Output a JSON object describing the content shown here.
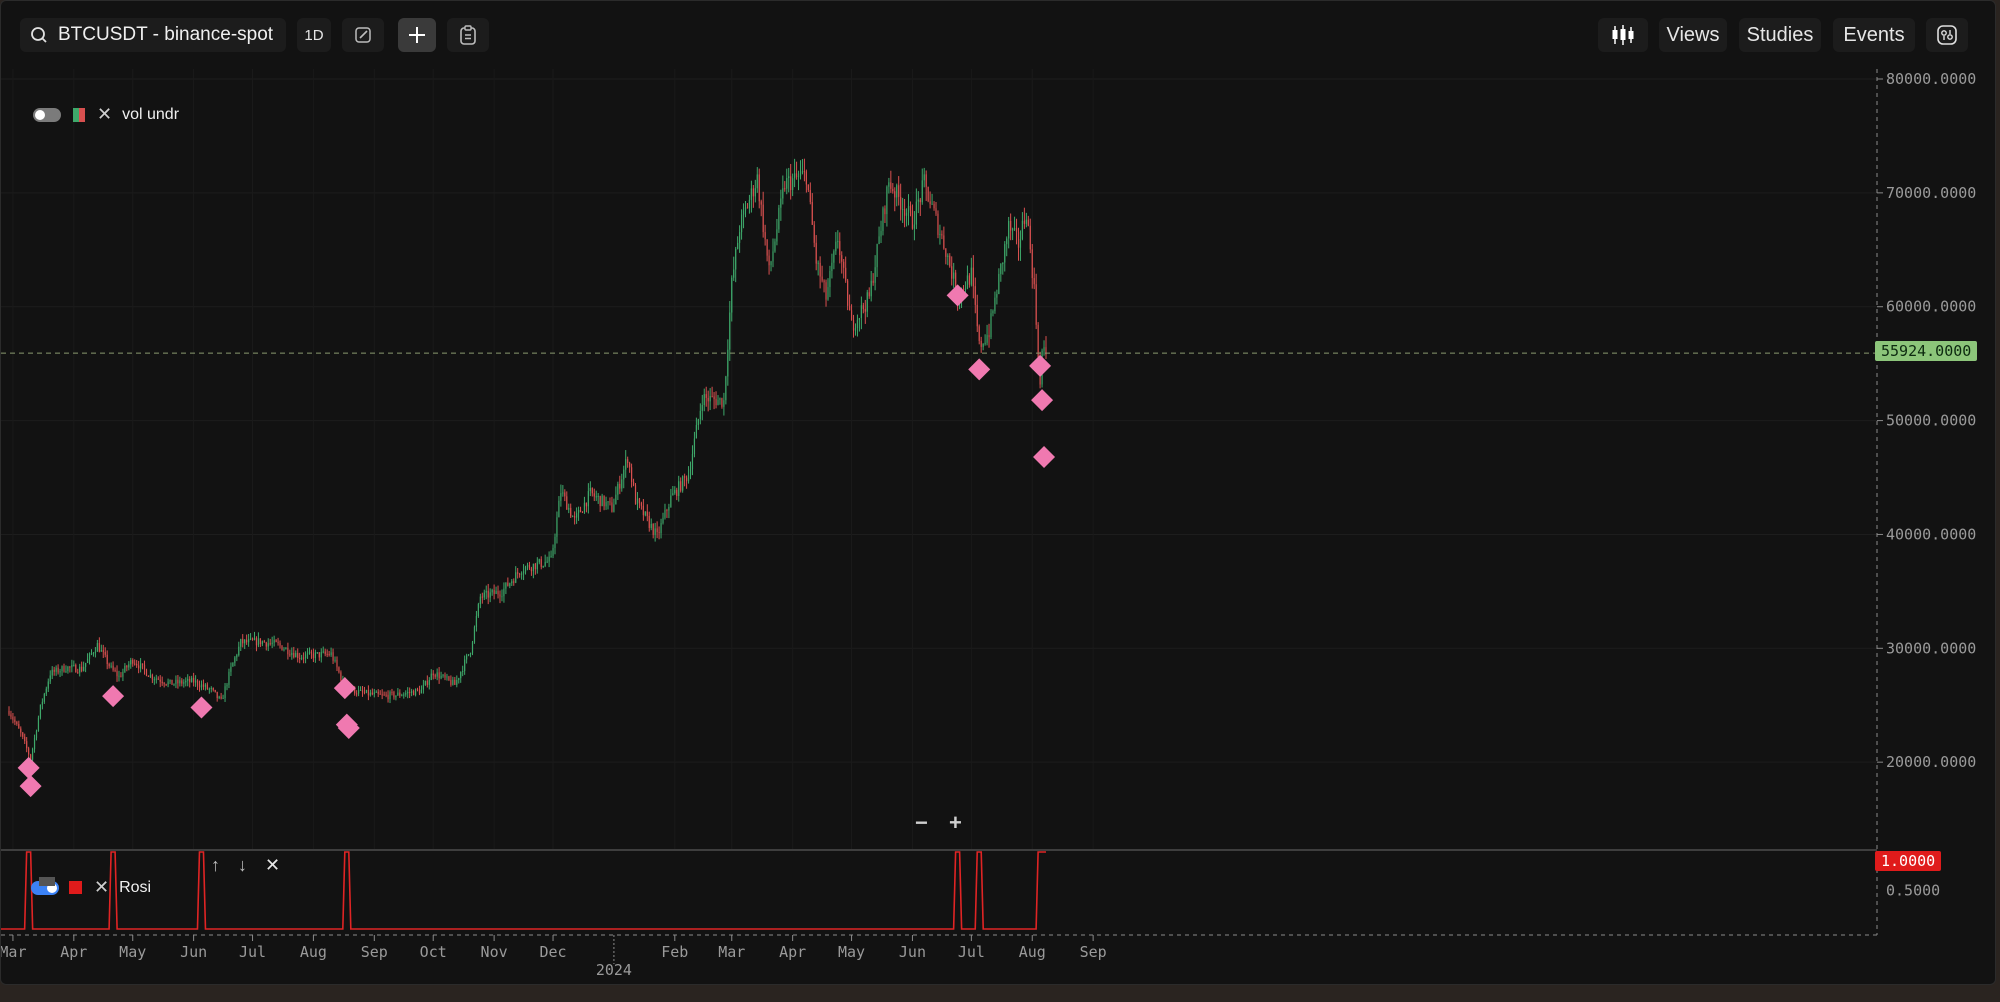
{
  "toolbar": {
    "symbol": "BTCUSDT - binance-spot",
    "interval": "1D",
    "views_label": "Views",
    "studies_label": "Studies",
    "events_label": "Events"
  },
  "legend_main": {
    "label": "vol undr"
  },
  "legend_sub": {
    "label": "Rosi"
  },
  "last_price_label": "55924.0000",
  "indicator_value_label": "1.0000",
  "price_axis_labels": [
    "80000.0000",
    "70000.0000",
    "60000.0000",
    "50000.0000",
    "40000.0000",
    "30000.0000",
    "20000.0000"
  ],
  "indicator_axis_labels": [
    "0.5000"
  ],
  "time_axis": {
    "months": [
      "Mar",
      "Apr",
      "May",
      "Jun",
      "Jul",
      "Aug",
      "Sep",
      "Oct",
      "Nov",
      "Dec",
      "Feb",
      "Mar",
      "Apr",
      "May",
      "Jun",
      "Jul",
      "Aug",
      "Sep"
    ],
    "year_label": "2024"
  },
  "zoom": {
    "minus": "−",
    "plus": "+"
  },
  "colors": {
    "up": "#3ea86a",
    "down": "#d8504f",
    "marker": "#f079b0",
    "indicator": "#e02424",
    "last_price_bg": "#8cc57a",
    "indicator_tag_bg": "#e01b1b"
  },
  "chart_data": {
    "type": "candlestick",
    "symbol": "BTCUSDT",
    "interval": "1D",
    "ylim": [
      10000,
      80000
    ],
    "start_date": "2023-02-27",
    "end_date": "2024-08-08",
    "anchors": [
      [
        "2023-02-27",
        24500
      ],
      [
        "2023-03-05",
        22500
      ],
      [
        "2023-03-10",
        20300
      ],
      [
        "2023-03-15",
        24800
      ],
      [
        "2023-03-20",
        27800
      ],
      [
        "2023-03-28",
        28300
      ],
      [
        "2023-04-05",
        28200
      ],
      [
        "2023-04-13",
        30300
      ],
      [
        "2023-04-20",
        28200
      ],
      [
        "2023-04-24",
        27500
      ],
      [
        "2023-05-01",
        29000
      ],
      [
        "2023-05-10",
        27600
      ],
      [
        "2023-05-20",
        26900
      ],
      [
        "2023-06-01",
        27100
      ],
      [
        "2023-06-10",
        26300
      ],
      [
        "2023-06-15",
        25300
      ],
      [
        "2023-06-20",
        28200
      ],
      [
        "2023-06-25",
        30500
      ],
      [
        "2023-07-05",
        30600
      ],
      [
        "2023-07-14",
        30300
      ],
      [
        "2023-07-25",
        29300
      ],
      [
        "2023-08-10",
        29500
      ],
      [
        "2023-08-17",
        26600
      ],
      [
        "2023-08-25",
        26100
      ],
      [
        "2023-09-05",
        25800
      ],
      [
        "2023-09-12",
        25900
      ],
      [
        "2023-09-25",
        26300
      ],
      [
        "2023-10-01",
        27900
      ],
      [
        "2023-10-12",
        26800
      ],
      [
        "2023-10-20",
        29900
      ],
      [
        "2023-10-25",
        34500
      ],
      [
        "2023-11-05",
        35000
      ],
      [
        "2023-11-15",
        37000
      ],
      [
        "2023-11-30",
        37700
      ],
      [
        "2023-12-05",
        43800
      ],
      [
        "2023-12-12",
        41200
      ],
      [
        "2023-12-20",
        43600
      ],
      [
        "2023-12-31",
        42300
      ],
      [
        "2024-01-08",
        46800
      ],
      [
        "2024-01-12",
        43000
      ],
      [
        "2024-01-23",
        39800
      ],
      [
        "2024-01-30",
        43200
      ],
      [
        "2024-02-08",
        45300
      ],
      [
        "2024-02-15",
        52000
      ],
      [
        "2024-02-26",
        51700
      ],
      [
        "2024-03-01",
        62000
      ],
      [
        "2024-03-05",
        67000
      ],
      [
        "2024-03-14",
        71300
      ],
      [
        "2024-03-20",
        63000
      ],
      [
        "2024-03-28",
        70800
      ],
      [
        "2024-04-08",
        71600
      ],
      [
        "2024-04-13",
        64000
      ],
      [
        "2024-04-18",
        60800
      ],
      [
        "2024-04-24",
        66000
      ],
      [
        "2024-05-01",
        58300
      ],
      [
        "2024-05-10",
        60800
      ],
      [
        "2024-05-20",
        71000
      ],
      [
        "2024-06-01",
        67500
      ],
      [
        "2024-06-07",
        70800
      ],
      [
        "2024-06-18",
        65000
      ],
      [
        "2024-06-24",
        61000
      ],
      [
        "2024-07-01",
        62800
      ],
      [
        "2024-07-05",
        56500
      ],
      [
        "2024-07-10",
        57800
      ],
      [
        "2024-07-20",
        67000
      ],
      [
        "2024-07-25",
        65500
      ],
      [
        "2024-07-29",
        68500
      ],
      [
        "2024-08-02",
        61500
      ],
      [
        "2024-08-05",
        53000
      ],
      [
        "2024-08-06",
        56000
      ],
      [
        "2024-08-08",
        55924
      ]
    ],
    "signal_markers": [
      {
        "date": "2023-03-09",
        "price": 19500
      },
      {
        "date": "2023-03-10",
        "price": 17900
      },
      {
        "date": "2023-04-21",
        "price": 25800
      },
      {
        "date": "2023-06-05",
        "price": 24800
      },
      {
        "date": "2023-08-17",
        "price": 26500
      },
      {
        "date": "2023-08-18",
        "price": 23300
      },
      {
        "date": "2023-08-19",
        "price": 23000
      },
      {
        "date": "2024-06-24",
        "price": 61000
      },
      {
        "date": "2024-07-05",
        "price": 54500
      },
      {
        "date": "2024-08-05",
        "price": 54800
      },
      {
        "date": "2024-08-06",
        "price": 51800
      },
      {
        "date": "2024-08-07",
        "price": 46800
      }
    ],
    "indicator": {
      "name": "Rosi",
      "ylim": [
        0,
        1
      ],
      "spike_dates": [
        "2023-03-09",
        "2023-04-21",
        "2023-06-05",
        "2023-08-18",
        "2024-06-24",
        "2024-07-05"
      ],
      "high_from": "2024-08-05"
    }
  }
}
